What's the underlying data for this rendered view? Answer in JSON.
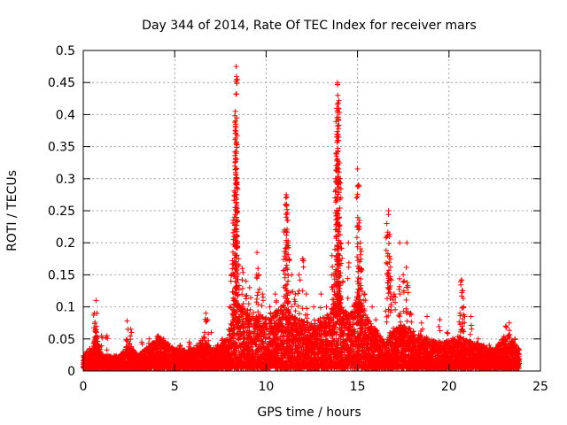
{
  "chart_data": {
    "type": "scatter",
    "title": "Day 344 of 2014, Rate Of TEC Index for receiver mars",
    "xlabel": "GPS time / hours",
    "ylabel": "ROTI / TECUs",
    "xlim": [
      0,
      25
    ],
    "ylim": [
      0,
      0.5
    ],
    "x_ticks": [
      0,
      5,
      10,
      15,
      20,
      25
    ],
    "x_tick_labels": [
      "0",
      "5",
      "10",
      "15",
      "20",
      "25"
    ],
    "y_ticks": [
      0,
      0.05,
      0.1,
      0.15,
      0.2,
      0.25,
      0.3,
      0.35,
      0.4,
      0.45,
      0.5
    ],
    "y_tick_labels": [
      "0",
      "0.05",
      "0.1",
      "0.15",
      "0.2",
      "0.25",
      "0.3",
      "0.35",
      "0.4",
      "0.45",
      "0.5"
    ],
    "grid": true,
    "marker": "+",
    "series": [
      {
        "name": "ROTI",
        "color": "#ff0000",
        "baseline_envelope": [
          [
            0.0,
            0.02
          ],
          [
            0.5,
            0.03
          ],
          [
            0.7,
            0.06
          ],
          [
            1.0,
            0.02
          ],
          [
            2.0,
            0.02
          ],
          [
            2.5,
            0.04
          ],
          [
            3.0,
            0.02
          ],
          [
            4.2,
            0.05
          ],
          [
            5.0,
            0.03
          ],
          [
            6.0,
            0.03
          ],
          [
            6.6,
            0.05
          ],
          [
            7.0,
            0.03
          ],
          [
            8.0,
            0.05
          ],
          [
            8.3,
            0.12
          ],
          [
            8.6,
            0.1
          ],
          [
            9.2,
            0.09
          ],
          [
            10.0,
            0.08
          ],
          [
            11.0,
            0.1
          ],
          [
            11.5,
            0.08
          ],
          [
            12.5,
            0.07
          ],
          [
            13.5,
            0.09
          ],
          [
            14.0,
            0.12
          ],
          [
            14.5,
            0.08
          ],
          [
            15.0,
            0.12
          ],
          [
            15.6,
            0.08
          ],
          [
            16.5,
            0.04
          ],
          [
            17.0,
            0.06
          ],
          [
            17.5,
            0.07
          ],
          [
            18.5,
            0.05
          ],
          [
            19.5,
            0.04
          ],
          [
            20.5,
            0.05
          ],
          [
            21.5,
            0.04
          ],
          [
            22.5,
            0.03
          ],
          [
            23.2,
            0.06
          ],
          [
            23.8,
            0.03
          ]
        ],
        "peaks": [
          [
            0.2,
            0.03
          ],
          [
            0.35,
            0.035
          ],
          [
            0.6,
            0.09
          ],
          [
            0.7,
            0.11
          ],
          [
            0.75,
            0.09
          ],
          [
            1.0,
            0.055
          ],
          [
            1.3,
            0.055
          ],
          [
            2.4,
            0.078
          ],
          [
            2.6,
            0.065
          ],
          [
            3.2,
            0.045
          ],
          [
            3.6,
            0.05
          ],
          [
            4.1,
            0.055
          ],
          [
            4.4,
            0.05
          ],
          [
            5.3,
            0.04
          ],
          [
            5.8,
            0.045
          ],
          [
            6.7,
            0.09
          ],
          [
            6.8,
            0.08
          ],
          [
            7.0,
            0.06
          ],
          [
            7.6,
            0.05
          ],
          [
            8.0,
            0.1
          ],
          [
            8.1,
            0.15
          ],
          [
            8.2,
            0.235
          ],
          [
            8.25,
            0.22
          ],
          [
            8.3,
            0.325
          ],
          [
            8.32,
            0.405
          ],
          [
            8.34,
            0.385
          ],
          [
            8.36,
            0.475
          ],
          [
            8.38,
            0.455
          ],
          [
            8.4,
            0.295
          ],
          [
            8.42,
            0.2
          ],
          [
            8.5,
            0.175
          ],
          [
            8.7,
            0.16
          ],
          [
            8.9,
            0.14
          ],
          [
            9.1,
            0.13
          ],
          [
            9.5,
            0.185
          ],
          [
            9.6,
            0.15
          ],
          [
            9.8,
            0.12
          ],
          [
            10.2,
            0.1
          ],
          [
            10.5,
            0.12
          ],
          [
            10.8,
            0.1
          ],
          [
            11.0,
            0.22
          ],
          [
            11.1,
            0.275
          ],
          [
            11.12,
            0.26
          ],
          [
            11.15,
            0.235
          ],
          [
            11.2,
            0.2
          ],
          [
            11.25,
            0.175
          ],
          [
            11.4,
            0.15
          ],
          [
            11.6,
            0.12
          ],
          [
            11.8,
            0.15
          ],
          [
            12.0,
            0.175
          ],
          [
            12.2,
            0.12
          ],
          [
            12.6,
            0.1
          ],
          [
            13.0,
            0.12
          ],
          [
            13.3,
            0.1
          ],
          [
            13.6,
            0.18
          ],
          [
            13.7,
            0.15
          ],
          [
            13.8,
            0.3
          ],
          [
            13.85,
            0.365
          ],
          [
            13.87,
            0.395
          ],
          [
            13.9,
            0.45
          ],
          [
            13.92,
            0.43
          ],
          [
            13.95,
            0.41
          ],
          [
            13.97,
            0.365
          ],
          [
            14.0,
            0.24
          ],
          [
            14.05,
            0.3
          ],
          [
            14.1,
            0.2
          ],
          [
            14.2,
            0.14
          ],
          [
            14.5,
            0.2
          ],
          [
            14.8,
            0.1
          ],
          [
            15.0,
            0.315
          ],
          [
            15.05,
            0.29
          ],
          [
            15.1,
            0.235
          ],
          [
            15.15,
            0.2
          ],
          [
            15.2,
            0.16
          ],
          [
            15.4,
            0.12
          ],
          [
            15.8,
            0.1
          ],
          [
            16.0,
            0.08
          ],
          [
            16.6,
            0.23
          ],
          [
            16.7,
            0.25
          ],
          [
            16.75,
            0.21
          ],
          [
            16.8,
            0.175
          ],
          [
            17.0,
            0.12
          ],
          [
            17.3,
            0.2
          ],
          [
            17.5,
            0.15
          ],
          [
            17.7,
            0.2
          ],
          [
            17.9,
            0.09
          ],
          [
            18.5,
            0.075
          ],
          [
            18.8,
            0.085
          ],
          [
            19.5,
            0.08
          ],
          [
            19.9,
            0.06
          ],
          [
            20.6,
            0.09
          ],
          [
            20.7,
            0.142
          ],
          [
            20.75,
            0.125
          ],
          [
            20.8,
            0.1
          ],
          [
            21.2,
            0.085
          ],
          [
            21.6,
            0.05
          ],
          [
            22.2,
            0.04
          ],
          [
            22.8,
            0.035
          ],
          [
            23.1,
            0.07
          ],
          [
            23.3,
            0.075
          ],
          [
            23.6,
            0.05
          ],
          [
            23.8,
            0.035
          ]
        ]
      }
    ]
  }
}
